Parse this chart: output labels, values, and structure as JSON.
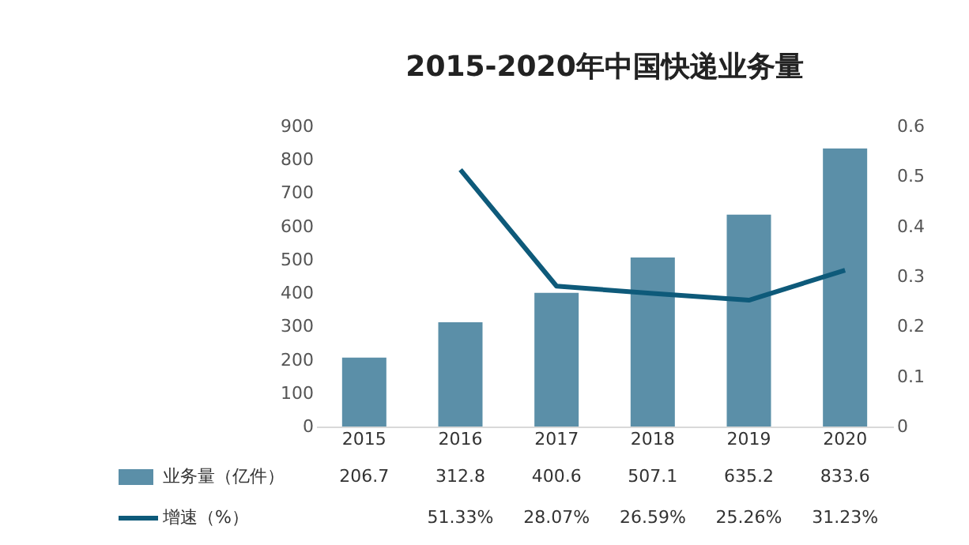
{
  "chart_data": {
    "type": "bar",
    "title": "2015-2020年中国快递业务量",
    "categories": [
      "2015",
      "2016",
      "2017",
      "2018",
      "2019",
      "2020"
    ],
    "series": [
      {
        "name": "业务量（亿件）",
        "color": "#5b8fa8",
        "values": [
          206.7,
          312.8,
          400.6,
          507.1,
          635.2,
          833.6
        ],
        "value_labels": [
          "206.7",
          "312.8",
          "400.6",
          "507.1",
          "635.2",
          "833.6"
        ]
      },
      {
        "name": "增速（%）",
        "type": "line",
        "axis": "y2",
        "color": "#0e5a7a",
        "values": [
          null,
          0.5133,
          0.2807,
          0.2659,
          0.2526,
          0.3123
        ],
        "value_labels": [
          null,
          "51.33%",
          "28.07%",
          "26.59%",
          "25.26%",
          "31.23%"
        ]
      }
    ],
    "ylim": [
      0,
      900
    ],
    "yticks": [
      0,
      100,
      200,
      300,
      400,
      500,
      600,
      700,
      800,
      900
    ],
    "y2lim": [
      0,
      0.6
    ],
    "y2ticks": [
      0,
      0.1,
      0.2,
      0.3,
      0.4,
      0.5,
      0.6
    ],
    "legend": "bottom",
    "grid": false
  }
}
